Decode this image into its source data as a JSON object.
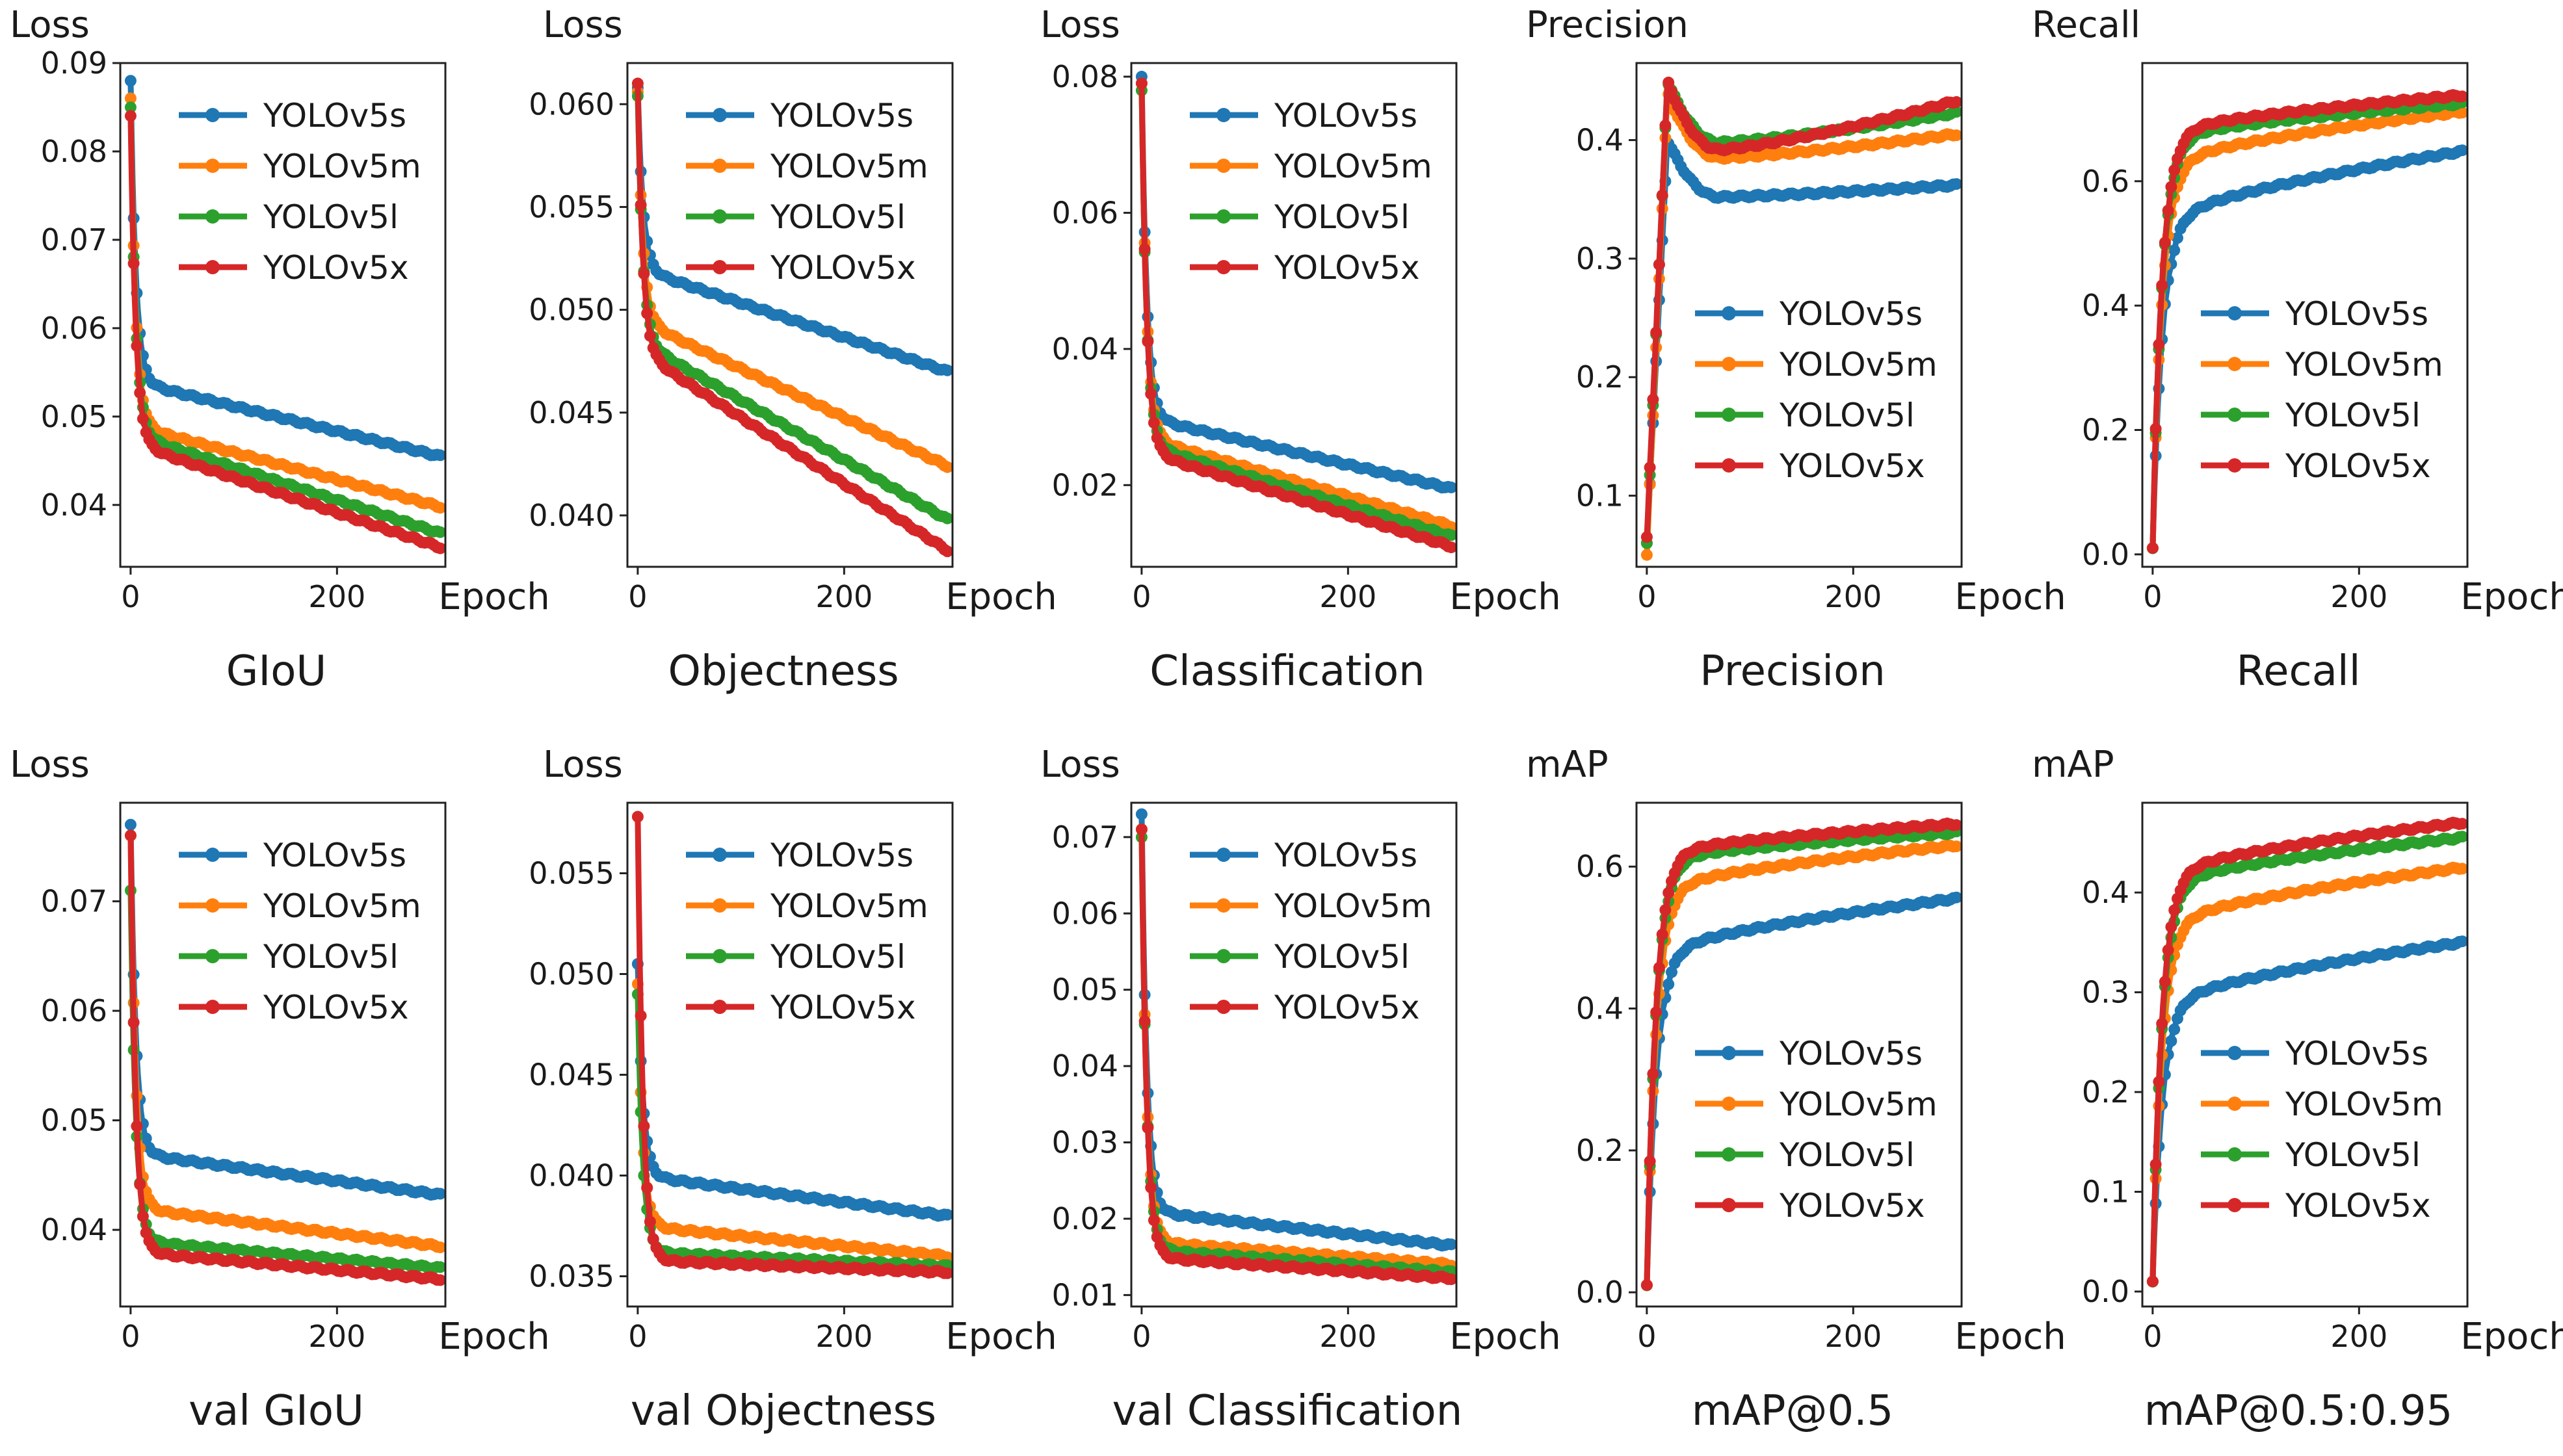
{
  "colors": {
    "YOLOv5s": "#1f77b4",
    "YOLOv5m": "#ff7f0e",
    "YOLOv5l": "#2ca02c",
    "YOLOv5x": "#d62728"
  },
  "chart_data": [
    {
      "type": "line",
      "title": "GIoU",
      "ylabel": "Loss",
      "xlabel": "Epoch",
      "xlim": [
        -10,
        305
      ],
      "ylim": [
        0.033,
        0.09
      ],
      "xticks": [
        0,
        200
      ],
      "yticks": [
        0.04,
        0.05,
        0.06,
        0.07,
        0.08,
        0.09
      ],
      "ytick_labels": [
        "0.04",
        "0.05",
        "0.06",
        "0.07",
        "0.08",
        "0.09"
      ],
      "legend_loc": "upper-right",
      "series": [
        {
          "name": "YOLOv5s",
          "start": 0.088,
          "mid": 0.054,
          "end": 0.0455,
          "shape": "decay"
        },
        {
          "name": "YOLOv5m",
          "start": 0.086,
          "mid": 0.049,
          "end": 0.0398,
          "shape": "decay"
        },
        {
          "name": "YOLOv5l",
          "start": 0.085,
          "mid": 0.048,
          "end": 0.0368,
          "shape": "decay"
        },
        {
          "name": "YOLOv5x",
          "start": 0.084,
          "mid": 0.047,
          "end": 0.0352,
          "shape": "decay"
        }
      ]
    },
    {
      "type": "line",
      "title": "Objectness",
      "ylabel": "Loss",
      "xlabel": "Epoch",
      "xlim": [
        -10,
        305
      ],
      "ylim": [
        0.0375,
        0.062
      ],
      "xticks": [
        0,
        200
      ],
      "yticks": [
        0.04,
        0.045,
        0.05,
        0.055,
        0.06
      ],
      "ytick_labels": [
        "0.040",
        "0.045",
        "0.050",
        "0.055",
        "0.060"
      ],
      "legend_loc": "upper-right",
      "series": [
        {
          "name": "YOLOv5s",
          "start": 0.0608,
          "mid": 0.052,
          "end": 0.047,
          "shape": "decay"
        },
        {
          "name": "YOLOv5m",
          "start": 0.0606,
          "mid": 0.0495,
          "end": 0.0424,
          "shape": "decay"
        },
        {
          "name": "YOLOv5l",
          "start": 0.0604,
          "mid": 0.0485,
          "end": 0.0398,
          "shape": "decay"
        },
        {
          "name": "YOLOv5x",
          "start": 0.061,
          "mid": 0.048,
          "end": 0.0383,
          "shape": "decay"
        }
      ]
    },
    {
      "type": "line",
      "title": "Classification",
      "ylabel": "Loss",
      "xlabel": "Epoch",
      "xlim": [
        -10,
        305
      ],
      "ylim": [
        0.008,
        0.082
      ],
      "xticks": [
        0,
        200
      ],
      "yticks": [
        0.02,
        0.04,
        0.06,
        0.08
      ],
      "ytick_labels": [
        "0.02",
        "0.04",
        "0.06",
        "0.08"
      ],
      "legend_loc": "upper-right",
      "series": [
        {
          "name": "YOLOv5s",
          "start": 0.08,
          "mid": 0.03,
          "end": 0.0195,
          "shape": "decay"
        },
        {
          "name": "YOLOv5m",
          "start": 0.079,
          "mid": 0.027,
          "end": 0.014,
          "shape": "decay"
        },
        {
          "name": "YOLOv5l",
          "start": 0.078,
          "mid": 0.026,
          "end": 0.0125,
          "shape": "decay"
        },
        {
          "name": "YOLOv5x",
          "start": 0.079,
          "mid": 0.025,
          "end": 0.011,
          "shape": "decay"
        }
      ]
    },
    {
      "type": "line",
      "title": "Precision",
      "ylabel": "Precision",
      "xlabel": "Epoch",
      "xlim": [
        -10,
        305
      ],
      "ylim": [
        0.04,
        0.465
      ],
      "xticks": [
        0,
        200
      ],
      "yticks": [
        0.1,
        0.2,
        0.3,
        0.4
      ],
      "ytick_labels": [
        "0.1",
        "0.2",
        "0.3",
        "0.4"
      ],
      "legend_loc": "lower-right",
      "series": [
        {
          "name": "YOLOv5s",
          "start": 0.06,
          "peak": 0.4,
          "valley": 0.352,
          "end": 0.362,
          "shape": "peak"
        },
        {
          "name": "YOLOv5m",
          "start": 0.05,
          "peak": 0.44,
          "valley": 0.385,
          "end": 0.405,
          "shape": "peak"
        },
        {
          "name": "YOLOv5l",
          "start": 0.06,
          "peak": 0.45,
          "valley": 0.398,
          "end": 0.423,
          "shape": "peak"
        },
        {
          "name": "YOLOv5x",
          "start": 0.065,
          "peak": 0.45,
          "valley": 0.392,
          "end": 0.433,
          "shape": "peak"
        }
      ]
    },
    {
      "type": "line",
      "title": "Recall",
      "ylabel": "Recall",
      "xlabel": "Epoch",
      "xlim": [
        -10,
        305
      ],
      "ylim": [
        -0.02,
        0.79
      ],
      "xticks": [
        0,
        200
      ],
      "yticks": [
        0.0,
        0.2,
        0.4,
        0.6
      ],
      "ytick_labels": [
        "0.0",
        "0.2",
        "0.4",
        "0.6"
      ],
      "legend_loc": "lower-right",
      "series": [
        {
          "name": "YOLOv5s",
          "start": 0.01,
          "mid": 0.54,
          "end": 0.648,
          "shape": "rise"
        },
        {
          "name": "YOLOv5m",
          "start": 0.01,
          "mid": 0.63,
          "end": 0.712,
          "shape": "rise"
        },
        {
          "name": "YOLOv5l",
          "start": 0.01,
          "mid": 0.67,
          "end": 0.725,
          "shape": "rise"
        },
        {
          "name": "YOLOv5x",
          "start": 0.01,
          "mid": 0.68,
          "end": 0.738,
          "shape": "rise"
        }
      ]
    },
    {
      "type": "line",
      "title": "val GIoU",
      "ylabel": "Loss",
      "xlabel": "Epoch",
      "xlim": [
        -10,
        305
      ],
      "ylim": [
        0.033,
        0.079
      ],
      "xticks": [
        0,
        200
      ],
      "yticks": [
        0.04,
        0.05,
        0.06,
        0.07
      ],
      "ytick_labels": [
        "0.04",
        "0.05",
        "0.06",
        "0.07"
      ],
      "legend_loc": "upper-right",
      "series": [
        {
          "name": "YOLOv5s",
          "start": 0.077,
          "mid": 0.047,
          "end": 0.0432,
          "shape": "decay"
        },
        {
          "name": "YOLOv5m",
          "start": 0.076,
          "mid": 0.042,
          "end": 0.0385,
          "shape": "decay"
        },
        {
          "name": "YOLOv5l",
          "start": 0.071,
          "mid": 0.039,
          "end": 0.0365,
          "shape": "decay"
        },
        {
          "name": "YOLOv5x",
          "start": 0.076,
          "mid": 0.038,
          "end": 0.0355,
          "shape": "decay"
        }
      ]
    },
    {
      "type": "line",
      "title": "val Objectness",
      "ylabel": "Loss",
      "xlabel": "Epoch",
      "xlim": [
        -10,
        305
      ],
      "ylim": [
        0.0335,
        0.0585
      ],
      "xticks": [
        0,
        200
      ],
      "yticks": [
        0.035,
        0.04,
        0.045,
        0.05,
        0.055
      ],
      "ytick_labels": [
        "0.035",
        "0.040",
        "0.045",
        "0.050",
        "0.055"
      ],
      "legend_loc": "upper-right",
      "series": [
        {
          "name": "YOLOv5s",
          "start": 0.0505,
          "mid": 0.04,
          "end": 0.038,
          "shape": "decay"
        },
        {
          "name": "YOLOv5m",
          "start": 0.0495,
          "mid": 0.0375,
          "end": 0.036,
          "shape": "decay"
        },
        {
          "name": "YOLOv5l",
          "start": 0.049,
          "mid": 0.0362,
          "end": 0.0355,
          "shape": "decay"
        },
        {
          "name": "YOLOv5x",
          "start": 0.0578,
          "mid": 0.0358,
          "end": 0.0352,
          "shape": "decay"
        }
      ]
    },
    {
      "type": "line",
      "title": "val Classification",
      "ylabel": "Loss",
      "xlabel": "Epoch",
      "xlim": [
        -10,
        305
      ],
      "ylim": [
        0.0085,
        0.0745
      ],
      "xticks": [
        0,
        200
      ],
      "yticks": [
        0.01,
        0.02,
        0.03,
        0.04,
        0.05,
        0.06,
        0.07
      ],
      "ytick_labels": [
        "0.01",
        "0.02",
        "0.03",
        "0.04",
        "0.05",
        "0.06",
        "0.07"
      ],
      "legend_loc": "upper-right",
      "series": [
        {
          "name": "YOLOv5s",
          "start": 0.073,
          "mid": 0.021,
          "end": 0.0165,
          "shape": "decay"
        },
        {
          "name": "YOLOv5m",
          "start": 0.071,
          "mid": 0.017,
          "end": 0.014,
          "shape": "decay"
        },
        {
          "name": "YOLOv5l",
          "start": 0.07,
          "mid": 0.016,
          "end": 0.013,
          "shape": "decay"
        },
        {
          "name": "YOLOv5x",
          "start": 0.071,
          "mid": 0.015,
          "end": 0.0122,
          "shape": "decay"
        }
      ]
    },
    {
      "type": "line",
      "title": "mAP@0.5",
      "ylabel": "mAP",
      "xlabel": "Epoch",
      "xlim": [
        -10,
        305
      ],
      "ylim": [
        -0.02,
        0.69
      ],
      "xticks": [
        0,
        200
      ],
      "yticks": [
        0.0,
        0.2,
        0.4,
        0.6
      ],
      "ytick_labels": [
        "0.0",
        "0.2",
        "0.4",
        "0.6"
      ],
      "legend_loc": "lower-right",
      "series": [
        {
          "name": "YOLOv5s",
          "start": 0.01,
          "mid": 0.48,
          "end": 0.555,
          "shape": "rise"
        },
        {
          "name": "YOLOv5m",
          "start": 0.01,
          "mid": 0.57,
          "end": 0.63,
          "shape": "rise"
        },
        {
          "name": "YOLOv5l",
          "start": 0.01,
          "mid": 0.61,
          "end": 0.648,
          "shape": "rise"
        },
        {
          "name": "YOLOv5x",
          "start": 0.01,
          "mid": 0.62,
          "end": 0.66,
          "shape": "rise"
        }
      ]
    },
    {
      "type": "line",
      "title": "mAP@0.5:0.95",
      "ylabel": "mAP",
      "xlabel": "Epoch",
      "xlim": [
        -10,
        305
      ],
      "ylim": [
        -0.015,
        0.49
      ],
      "xticks": [
        0,
        200
      ],
      "yticks": [
        0.0,
        0.1,
        0.2,
        0.3,
        0.4
      ],
      "ytick_labels": [
        "0.0",
        "0.1",
        "0.2",
        "0.3",
        "0.4"
      ],
      "legend_loc": "lower-right",
      "series": [
        {
          "name": "YOLOv5s",
          "start": 0.01,
          "mid": 0.29,
          "end": 0.35,
          "shape": "rise"
        },
        {
          "name": "YOLOv5m",
          "start": 0.01,
          "mid": 0.37,
          "end": 0.425,
          "shape": "rise"
        },
        {
          "name": "YOLOv5l",
          "start": 0.01,
          "mid": 0.41,
          "end": 0.455,
          "shape": "rise"
        },
        {
          "name": "YOLOv5x",
          "start": 0.01,
          "mid": 0.42,
          "end": 0.47,
          "shape": "rise"
        }
      ]
    }
  ]
}
